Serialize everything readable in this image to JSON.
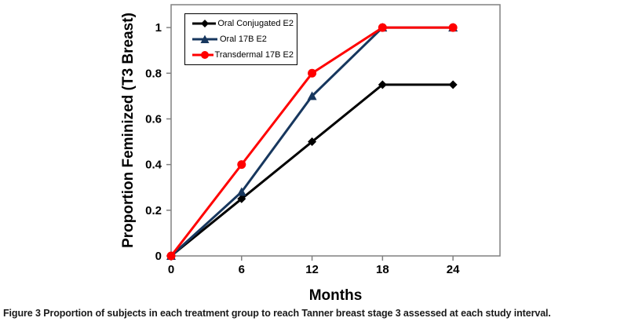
{
  "figure": {
    "caption_label": "Figure 3",
    "caption_text": "Proportion of subjects in each treatment group to reach Tanner breast stage 3 assessed at each study interval."
  },
  "chart_data": {
    "type": "line",
    "title": "",
    "xlabel": "Months",
    "ylabel": "Proportion Feminized (T3 Breast)",
    "x": [
      0,
      6,
      12,
      18,
      24
    ],
    "xlim": [
      0,
      28
    ],
    "ylim": [
      0,
      1.1
    ],
    "xticks": [
      0,
      6,
      12,
      18,
      24
    ],
    "xtick_labels": [
      "0",
      "6",
      "12",
      "18",
      "24"
    ],
    "yticks": [
      0,
      0.2,
      0.4,
      0.6,
      0.8,
      1
    ],
    "ytick_labels": [
      "0",
      "0.2",
      "0.4",
      "0.6",
      "0.8",
      "1"
    ],
    "grid": false,
    "legend_position": "top-left",
    "axis_color": "#808080",
    "series": [
      {
        "name": "Oral Conjugated E2",
        "marker": "diamond",
        "color": "#000000",
        "values": [
          0,
          0.25,
          0.5,
          0.75,
          0.75
        ]
      },
      {
        "name": "Oral 17B E2",
        "marker": "triangle",
        "color": "#17375E",
        "values": [
          0,
          0.28,
          0.7,
          1,
          1
        ]
      },
      {
        "name": "Transdermal 17B E2",
        "marker": "circle",
        "color": "#FF0000",
        "values": [
          0,
          0.4,
          0.8,
          1,
          1
        ]
      }
    ]
  }
}
